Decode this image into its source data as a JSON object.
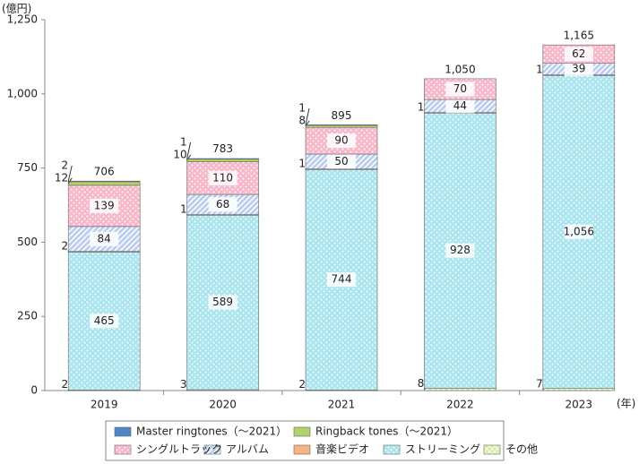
{
  "chart_data": {
    "type": "stacked-bar",
    "y_unit_label": "(億円)",
    "x_unit_label": "(年)",
    "categories": [
      "2019",
      "2020",
      "2021",
      "2022",
      "2023"
    ],
    "ylim": [
      0,
      1250
    ],
    "yticks": [
      0,
      250,
      500,
      750,
      {
        "value": 1000,
        "label": "1,000"
      },
      {
        "value": 1250,
        "label": "1,250"
      }
    ],
    "series": [
      {
        "name": "その他",
        "color": "#d9ec9c",
        "pattern": "cross",
        "values": [
          2,
          3,
          2,
          8,
          7
        ]
      },
      {
        "name": "ストリーミング",
        "color": "#a9e5ef",
        "pattern": "dots",
        "values": [
          465,
          589,
          744,
          928,
          1056
        ],
        "value_labels": [
          "465",
          "589",
          "744",
          "928",
          "1,056"
        ]
      },
      {
        "name": "音楽ビデオ",
        "color": "#f6b483",
        "pattern": "none",
        "values": [
          2,
          1,
          1,
          1,
          1
        ]
      },
      {
        "name": "アルバム",
        "color": "#b9cdf2",
        "pattern": "stripes",
        "values": [
          84,
          68,
          50,
          44,
          39
        ]
      },
      {
        "name": "シングルトラック",
        "color": "#f8b6c8",
        "pattern": "dots",
        "values": [
          139,
          110,
          90,
          70,
          62
        ]
      },
      {
        "name": "Ringback tones（～2021）",
        "color": "#b0d46a",
        "pattern": "none",
        "values": [
          12,
          10,
          8,
          null,
          null
        ]
      },
      {
        "name": "Master ringtones（～2021）",
        "color": "#4f86c6",
        "pattern": "none",
        "values": [
          2,
          1,
          1,
          null,
          null
        ]
      }
    ],
    "totals": [
      706,
      783,
      895,
      1050,
      1165
    ],
    "total_labels": [
      "706",
      "783",
      "895",
      "1,050",
      "1,165"
    ]
  }
}
